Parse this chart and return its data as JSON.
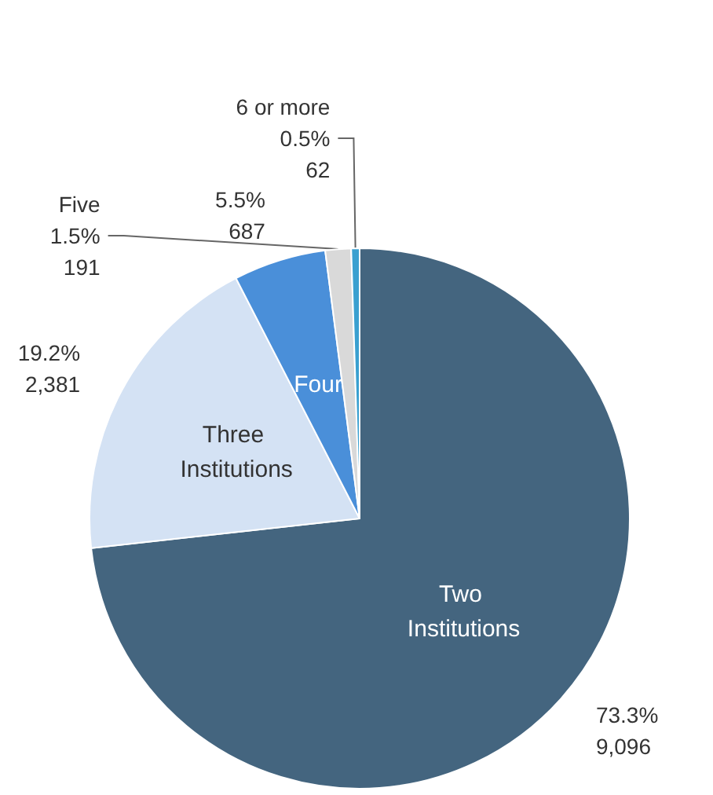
{
  "chart_data": {
    "type": "pie",
    "categories": [
      "Two Institutions",
      "Three Institutions",
      "Four",
      "Five",
      "6 or more"
    ],
    "values": [
      9096,
      2381,
      687,
      191,
      62
    ],
    "value_labels": [
      "73.3%\n9,096",
      "19.2%\n2,381",
      "5.5%\n687",
      "1.5%\n191",
      "0.5%\n62"
    ],
    "colors": [
      "#44657f",
      "#d4e2f4",
      "#4a8fd9",
      "#d9d9d9",
      "#3aa0d0"
    ],
    "legend": false
  }
}
